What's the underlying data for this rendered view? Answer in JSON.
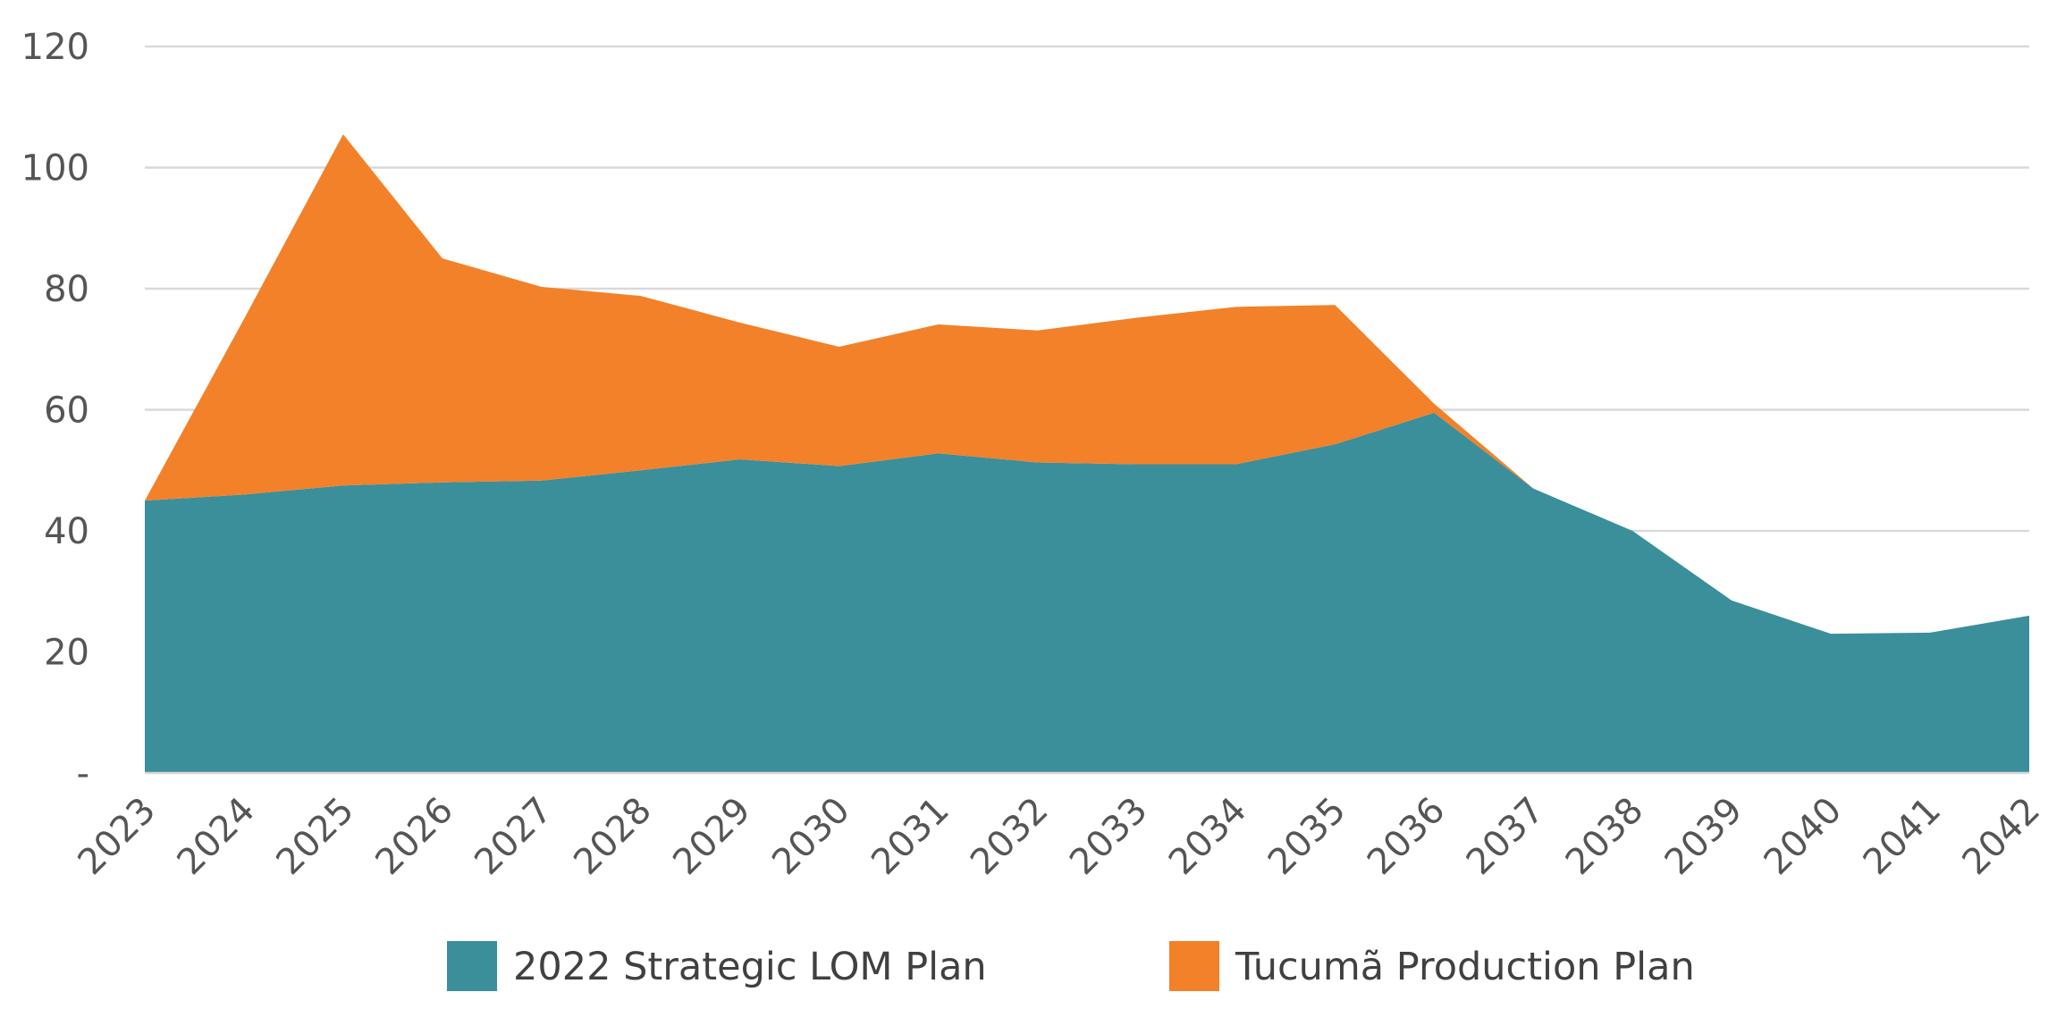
{
  "chart_data": {
    "type": "area",
    "stacked": true,
    "categories": [
      "2023",
      "2024",
      "2025",
      "2026",
      "2027",
      "2028",
      "2029",
      "2030",
      "2031",
      "2032",
      "2033",
      "2034",
      "2035",
      "2036",
      "2037",
      "2038",
      "2039",
      "2040",
      "2041",
      "2042"
    ],
    "series": [
      {
        "name": "2022 Strategic LOM Plan",
        "color": "#3a8f9b",
        "values": [
          45,
          46,
          47.5,
          48,
          48.3,
          50,
          51.8,
          50.7,
          52.8,
          51.3,
          51,
          51,
          54.3,
          59.5,
          47,
          40,
          28.5,
          23,
          23.2,
          26
        ]
      },
      {
        "name": "Tucumã Production Plan",
        "color": "#f2812a",
        "values": [
          0,
          29,
          58,
          37,
          32,
          28.8,
          22.6,
          19.7,
          21.3,
          21.8,
          24.2,
          26,
          23,
          1.5,
          0,
          0,
          0,
          0,
          0,
          0
        ]
      }
    ],
    "yticks": [
      "-",
      "20",
      "40",
      "60",
      "80",
      "100",
      "120"
    ],
    "ytick_values": [
      0,
      20,
      40,
      60,
      80,
      100,
      120
    ],
    "ylim": [
      0,
      120
    ],
    "grid": true,
    "legend_position": "bottom"
  }
}
